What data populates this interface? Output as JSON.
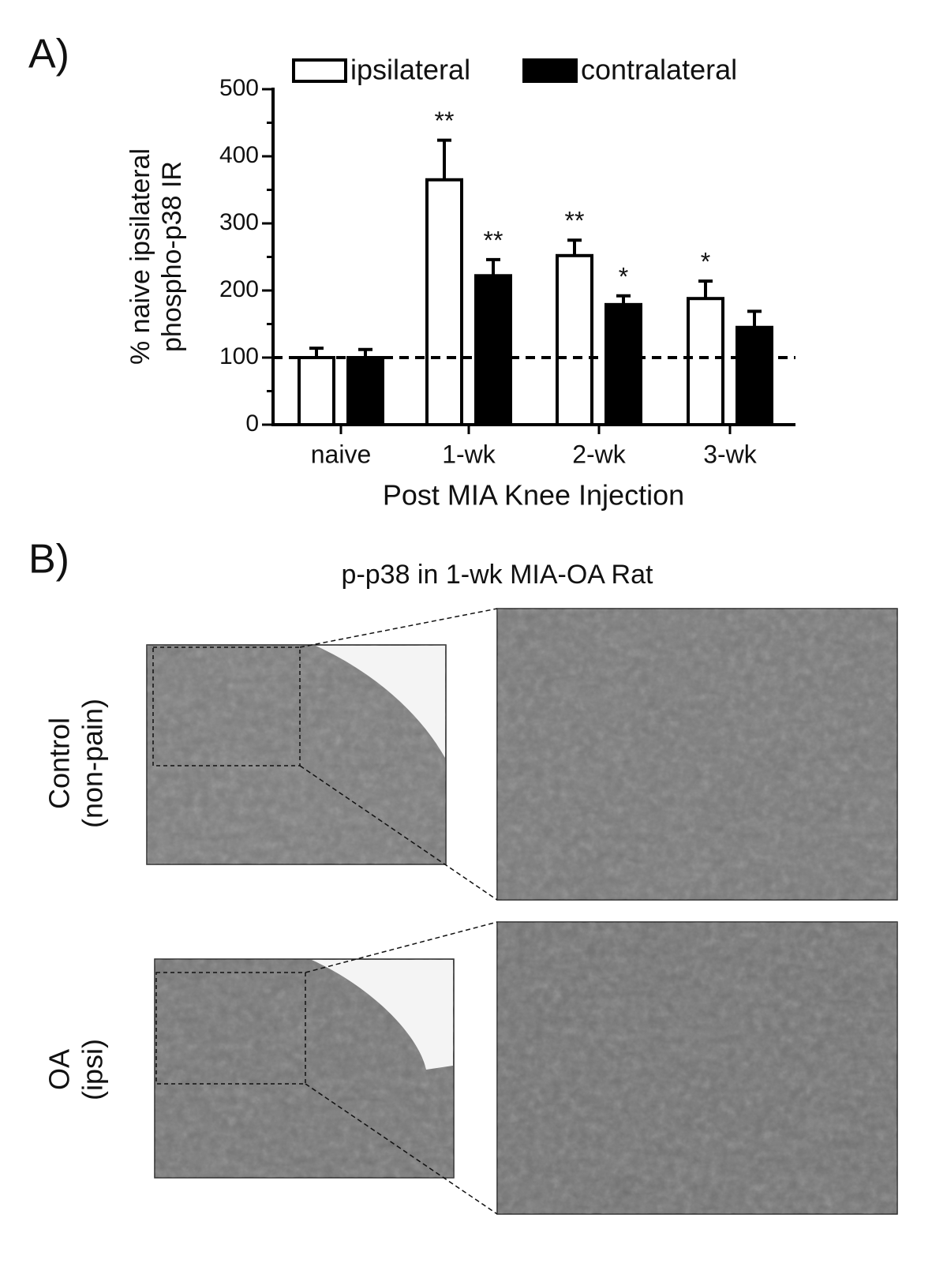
{
  "chart_data": {
    "type": "bar",
    "panel_label": "A)",
    "categories": [
      "naive",
      "1-wk",
      "2-wk",
      "3-wk"
    ],
    "series": [
      {
        "name": "ipsilateral",
        "color": "#ffffff",
        "values": [
          100,
          365,
          252,
          188
        ],
        "errors": [
          14,
          59,
          23,
          26
        ],
        "significance": [
          null,
          "**",
          "**",
          "*"
        ]
      },
      {
        "name": "contralateral",
        "color": "#000000",
        "values": [
          100,
          222,
          179,
          145
        ],
        "errors": [
          12,
          24,
          13,
          24
        ],
        "significance": [
          null,
          "**",
          "*",
          null
        ]
      }
    ],
    "ylabel": [
      "% naive ipsilateral",
      "phospho-p38 IR"
    ],
    "xlabel": "Post MIA Knee Injection",
    "ylim": [
      0,
      500
    ],
    "yticks": [
      0,
      100,
      200,
      300,
      400,
      500
    ],
    "yminor_ticks": [
      50,
      150,
      250,
      350,
      450
    ],
    "reference_line": 100,
    "legend": "top",
    "grid": false
  },
  "panel_b": {
    "label": "B)",
    "title": "p-p38 in 1-wk MIA-OA Rat",
    "rows": [
      {
        "label": [
          "Control",
          "(non-pain)"
        ]
      },
      {
        "label": [
          "OA",
          "(ipsi)"
        ]
      }
    ]
  }
}
